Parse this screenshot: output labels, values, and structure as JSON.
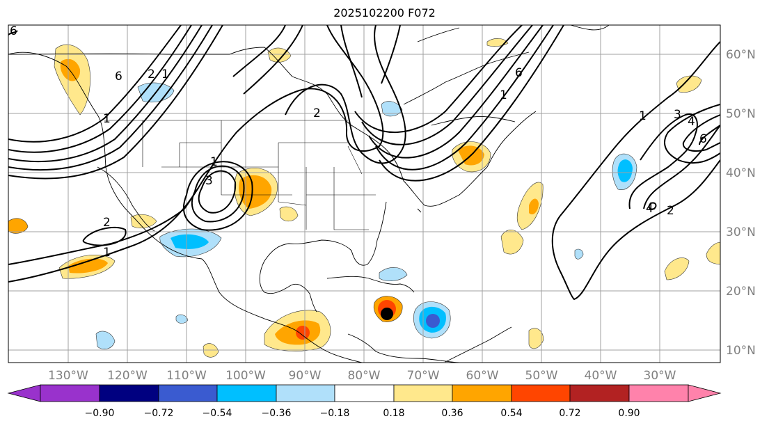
{
  "title": "2025102200 F072",
  "lon_labels": [
    "130°W",
    "120°W",
    "110°W",
    "100°W",
    "90°W",
    "80°W",
    "70°W",
    "60°W",
    "50°W",
    "40°W",
    "30°W"
  ],
  "lat_labels": [
    "60°N",
    "50°N",
    "40°N",
    "30°N",
    "20°N",
    "10°N"
  ],
  "colorbar": {
    "ticks": [
      "−0.90",
      "−0.72",
      "−0.54",
      "−0.36",
      "−0.18",
      "0.18",
      "0.36",
      "0.54",
      "0.72",
      "0.90"
    ],
    "colors": {
      "under": "#9932cc",
      "c1": "#000080",
      "c2": "#3a5bd0",
      "c3": "#00bfff",
      "c4": "#b0e0fa",
      "c5": "#ffffff",
      "c6": "#ffe88c",
      "c7": "#ffa500",
      "c8": "#ff4500",
      "c9": "#b22222",
      "over": "#ff82ab"
    }
  },
  "contour_labels": {
    "l1": "6",
    "l2": "1",
    "l3": "2",
    "l4": "1",
    "l5": "6",
    "l6": "2",
    "l7": "1",
    "l8": "3",
    "l9": "2",
    "l10": "1",
    "l11": "6",
    "l12": "1",
    "l13": "1",
    "l14": "3",
    "l15": "4",
    "l16": "6",
    "l17": "4",
    "l18": "2"
  }
}
